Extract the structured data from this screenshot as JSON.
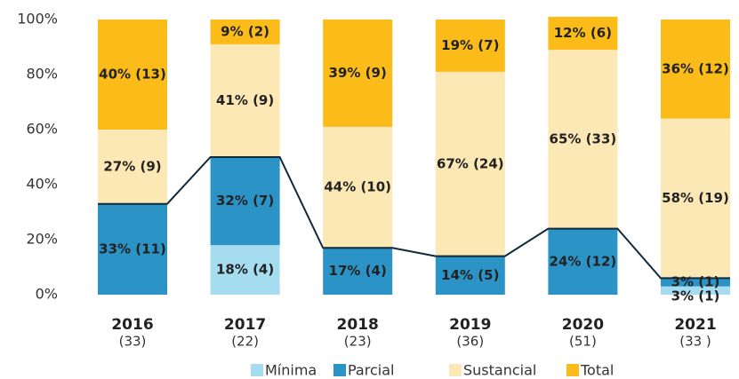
{
  "chart_data": {
    "type": "stacked_bar",
    "categories": [
      "2016",
      "2017",
      "2018",
      "2019",
      "2020",
      "2021"
    ],
    "category_counts": [
      "(33)",
      "(22)",
      "(23)",
      "(36)",
      "(51)",
      "(33 )"
    ],
    "ylim": [
      0,
      100
    ],
    "yticks": [
      {
        "value": 0,
        "label": "0%"
      },
      {
        "value": 20,
        "label": "20%"
      },
      {
        "value": 40,
        "label": "40%"
      },
      {
        "value": 60,
        "label": "60%"
      },
      {
        "value": 80,
        "label": "80%"
      },
      {
        "value": 100,
        "label": "100%"
      }
    ],
    "grid": false,
    "legend": "bottom",
    "series": [
      {
        "name": "Mínima",
        "color": "#a6dcf0",
        "label_color": "#222222",
        "values": [
          0,
          18,
          0,
          0,
          0,
          3
        ],
        "value_labels": [
          null,
          "18% (4)",
          null,
          null,
          null,
          "3% (1)"
        ]
      },
      {
        "name": "Parcial",
        "color": "#2b93c6",
        "label_color": "#ffffff",
        "values": [
          33,
          32,
          17,
          14,
          24,
          3
        ],
        "value_labels": [
          "33% (11)",
          "32% (7)",
          "17% (4)",
          "14% (5)",
          "24% (12)",
          "3% (1)"
        ]
      },
      {
        "name": "Sustancial",
        "color": "#fce8b4",
        "label_color": "#222222",
        "values": [
          27,
          41,
          44,
          67,
          65,
          58
        ],
        "value_labels": [
          "27% (9)",
          "41% (9)",
          "44% (10)",
          "67% (24)",
          "65% (33)",
          "58% (19)"
        ]
      },
      {
        "name": "Total",
        "color": "#fbbc1a",
        "label_color": "#222222",
        "values": [
          40,
          9,
          39,
          19,
          12,
          36
        ],
        "value_labels": [
          "40% (13)",
          "9% (2)",
          "39% (9)",
          "19% (7)",
          "12% (6)",
          "36% (12)"
        ]
      }
    ]
  }
}
